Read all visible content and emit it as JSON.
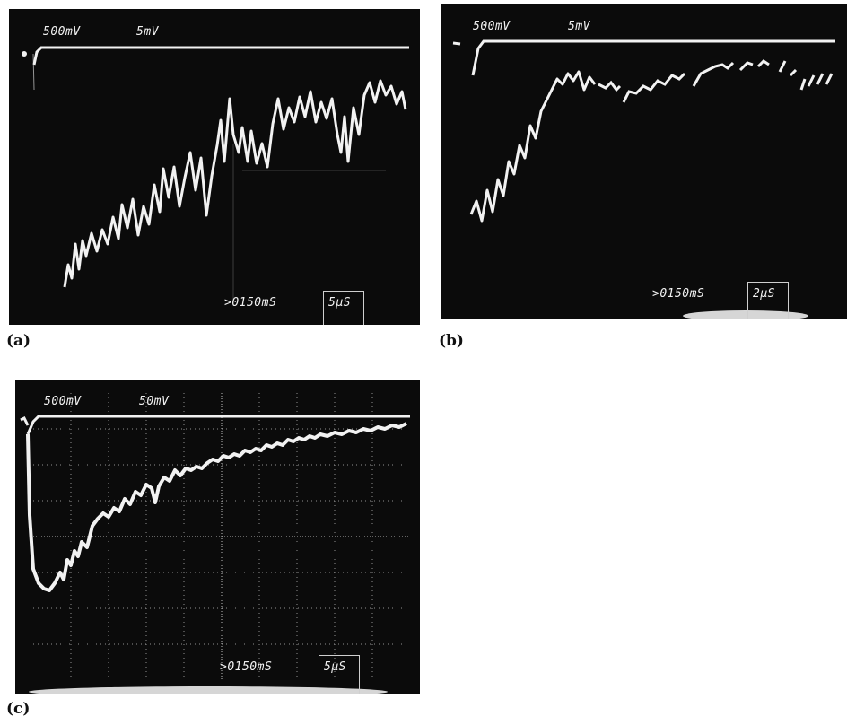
{
  "panels": [
    {
      "id": "a",
      "caption": "(a)",
      "ch1_scale": "500mV",
      "ch2_scale": "5mV",
      "trigger": ">0150mS",
      "timebase": "5μS"
    },
    {
      "id": "b",
      "caption": "(b)",
      "ch1_scale": "500mV",
      "ch2_scale": "5mV",
      "trigger": ">0150mS",
      "timebase": "2μS"
    },
    {
      "id": "c",
      "caption": "(c)",
      "ch1_scale": "500mV",
      "ch2_scale": "50mV",
      "trigger": ">0150mS",
      "timebase": "5μS"
    }
  ],
  "colors": {
    "screen": "#0b0b0b",
    "trace": "#f2f2f2",
    "grid": "#bdbdbd"
  }
}
